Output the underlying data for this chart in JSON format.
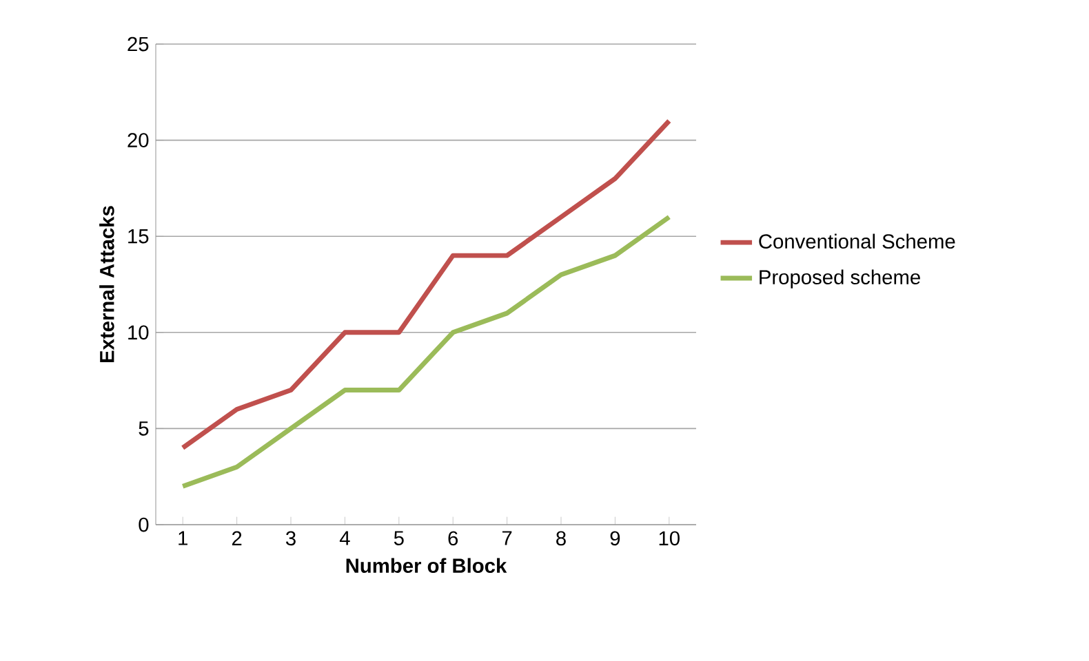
{
  "chart_data": {
    "type": "line",
    "xlabel": "Number of Block",
    "ylabel": "External Attacks",
    "categories": [
      "1",
      "2",
      "3",
      "4",
      "5",
      "6",
      "7",
      "8",
      "9",
      "10"
    ],
    "series": [
      {
        "name": "Conventional Scheme",
        "color": "#c0504d",
        "values": [
          4,
          6,
          7,
          10,
          10,
          14,
          14,
          16,
          18,
          21
        ]
      },
      {
        "name": "Proposed scheme",
        "color": "#9bbb59",
        "values": [
          2,
          3,
          5,
          7,
          7,
          10,
          11,
          13,
          14,
          16
        ]
      }
    ],
    "ylim": [
      0,
      25
    ],
    "yticks": [
      0,
      5,
      10,
      15,
      20,
      25
    ],
    "grid": "y",
    "legend": "right",
    "marker": "none"
  }
}
